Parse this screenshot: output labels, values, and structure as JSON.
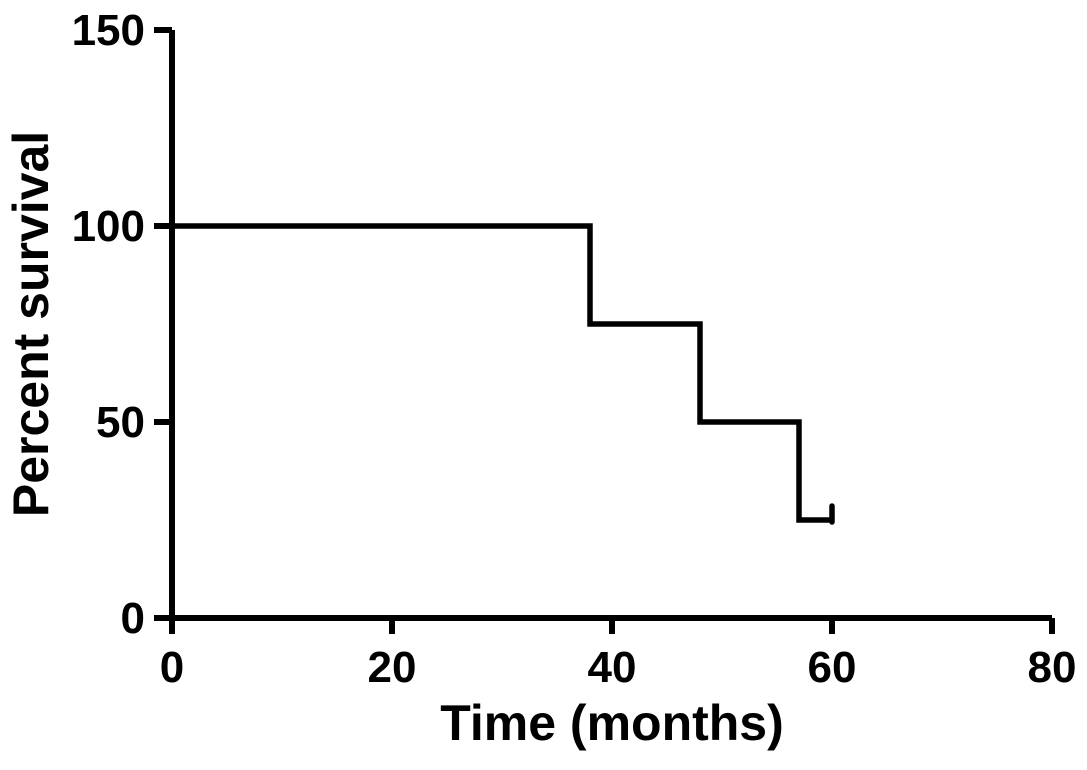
{
  "figure": {
    "background_color": "#ffffff",
    "ink_color": "#000000"
  },
  "chart_data": {
    "type": "line",
    "subtype": "kaplan_meier_step",
    "title": "",
    "xlabel": "Time (months)",
    "ylabel": "Percent survival",
    "xlim": [
      0,
      80
    ],
    "ylim": [
      0,
      150
    ],
    "xticks": [
      0,
      20,
      40,
      60,
      80
    ],
    "yticks": [
      0,
      50,
      100,
      150
    ],
    "grid": false,
    "legend": false,
    "line_color": "#000000",
    "series": [
      {
        "step_points": [
          {
            "x": 0,
            "y": 100
          },
          {
            "x": 38,
            "y": 100
          },
          {
            "x": 38,
            "y": 75
          },
          {
            "x": 48,
            "y": 75
          },
          {
            "x": 48,
            "y": 50
          },
          {
            "x": 57,
            "y": 50
          },
          {
            "x": 57,
            "y": 25
          },
          {
            "x": 60,
            "y": 25
          }
        ],
        "censor_ticks": [
          {
            "x": 60,
            "y": 25
          }
        ]
      }
    ]
  }
}
